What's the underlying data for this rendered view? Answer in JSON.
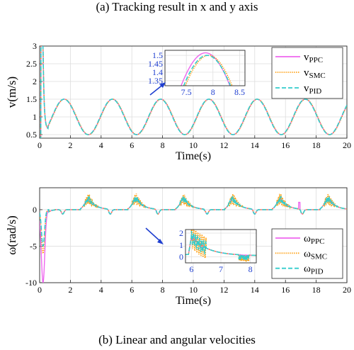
{
  "captions": {
    "top": "(a) Tracking result in x and y axis",
    "bottom": "(b) Linear and angular velocities"
  },
  "colors": {
    "ppc": "#ee66ee",
    "smc": "#ff9900",
    "pid": "#33cccc",
    "arrow": "#1f3fd0"
  },
  "chart_data": [
    {
      "type": "line",
      "xlabel": "Time(s)",
      "ylabel": "v(m/s)",
      "xlim": [
        0,
        20
      ],
      "ylim": [
        0.4,
        3.0
      ],
      "xticks": [
        0,
        2,
        4,
        6,
        8,
        10,
        12,
        14,
        16,
        18,
        20
      ],
      "yticks": [
        0.5,
        1,
        1.5,
        2,
        2.5,
        3
      ],
      "grid": true,
      "legend_position": "top-right",
      "signal": {
        "kind": "sine",
        "mean": 1.0,
        "amplitude": 0.5,
        "period": 3.14,
        "peak_at": 1.6,
        "initial_spike": 3.0
      },
      "series": [
        {
          "name": "vPPC",
          "style": "solid"
        },
        {
          "name": "vSMC",
          "style": "dotted"
        },
        {
          "name": "vPID",
          "style": "dashed"
        }
      ],
      "inset": {
        "xlim": [
          7.1,
          8.6
        ],
        "ylim": [
          1.32,
          1.53
        ],
        "xticks": [
          7.5,
          8,
          8.5
        ],
        "yticks": [
          1.35,
          1.4,
          1.45,
          1.5
        ]
      }
    },
    {
      "type": "line",
      "xlabel": "Time(s)",
      "ylabel": "ω(rad/s)",
      "xlim": [
        0,
        20
      ],
      "ylim": [
        -10,
        3
      ],
      "xticks": [
        0,
        2,
        4,
        6,
        8,
        10,
        12,
        14,
        16,
        18,
        20
      ],
      "yticks": [
        -10,
        -5,
        0
      ],
      "grid": true,
      "legend_position": "bottom-right",
      "signal": {
        "kind": "periodic-peaks",
        "peak_times": [
          3.2,
          6.3,
          9.4,
          12.6,
          15.7,
          18.8
        ],
        "peak_height": 1.5,
        "dip_times": [
          1.5,
          4.6,
          7.7,
          10.9,
          14.0,
          17.1
        ],
        "dip_depth": -0.6,
        "initial_dip": -10
      },
      "series": [
        {
          "name": "ωPPC",
          "style": "solid"
        },
        {
          "name": "ωSMC",
          "style": "dotted"
        },
        {
          "name": "ωPID",
          "style": "dashed"
        }
      ],
      "inset": {
        "xlim": [
          5.8,
          8.2
        ],
        "ylim": [
          -0.5,
          2.3
        ],
        "xticks": [
          6,
          7,
          8
        ],
        "yticks": [
          0,
          1,
          2
        ]
      }
    }
  ]
}
